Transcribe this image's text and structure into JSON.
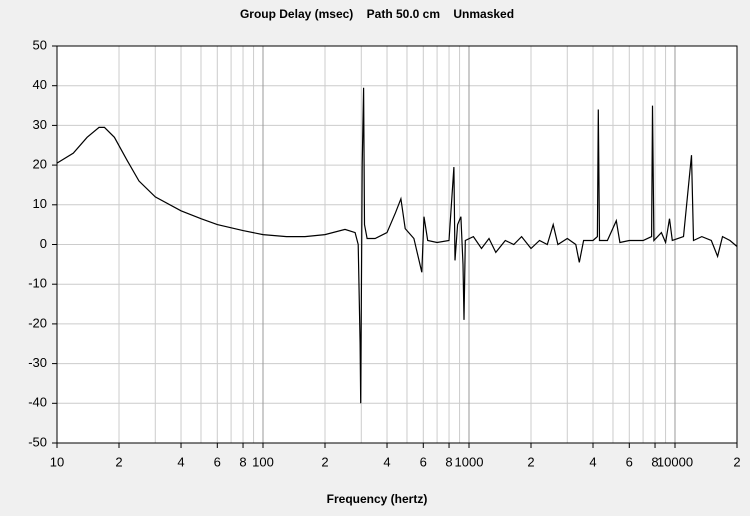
{
  "chart_data": {
    "type": "line",
    "title": "Group Delay (msec)    Path 50.0 cm    Unmasked",
    "xlabel": "Frequency (hertz)",
    "xscale": "log",
    "xlim": [
      10,
      20000
    ],
    "ylim": [
      -50,
      50
    ],
    "yticks": [
      -50,
      -40,
      -30,
      -20,
      -10,
      0,
      10,
      20,
      30,
      40,
      50
    ],
    "xticks": [
      10,
      {
        "value": 20,
        "label": "2"
      },
      {
        "value": 40,
        "label": "4"
      },
      {
        "value": 60,
        "label": "6"
      },
      {
        "value": 80,
        "label": "8"
      },
      100,
      {
        "value": 200,
        "label": "2"
      },
      {
        "value": 400,
        "label": "4"
      },
      {
        "value": 600,
        "label": "6"
      },
      {
        "value": 800,
        "label": "8"
      },
      1000,
      {
        "value": 2000,
        "label": "2"
      },
      {
        "value": 4000,
        "label": "4"
      },
      {
        "value": 6000,
        "label": "6"
      },
      {
        "value": 8000,
        "label": "8"
      },
      10000,
      {
        "value": 20000,
        "label": "2"
      }
    ],
    "x_minor_gridlines": [
      30,
      50,
      70,
      90,
      300,
      500,
      700,
      900,
      3000,
      5000,
      7000,
      9000
    ],
    "grid": true,
    "series": [
      {
        "color": "#000000",
        "x": [
          10,
          12,
          14,
          16,
          17,
          19,
          22,
          25,
          30,
          40,
          50,
          60,
          80,
          100,
          130,
          160,
          200,
          250,
          280,
          290,
          296,
          298,
          303,
          308,
          311,
          320,
          350,
          400,
          440,
          467,
          490,
          540,
          590,
          605,
          630,
          700,
          800,
          845,
          855,
          880,
          914,
          935,
          946,
          960,
          1050,
          1150,
          1250,
          1350,
          1500,
          1650,
          1800,
          2000,
          2200,
          2400,
          2564,
          2700,
          3000,
          3300,
          3430,
          3600,
          4000,
          4200,
          4244,
          4300,
          4700,
          5192,
          5400,
          6000,
          7000,
          7700,
          7780,
          7900,
          8590,
          9000,
          9400,
          9700,
          11000,
          12030,
          12300,
          13500,
          15000,
          16100,
          17000,
          18500,
          20000
        ],
        "values": [
          20.5,
          23,
          27,
          29.5,
          29.5,
          27,
          21,
          16,
          12,
          8.5,
          6.5,
          5,
          3.5,
          2.5,
          2,
          2,
          2.5,
          3.8,
          3,
          0,
          -25,
          -40,
          20,
          39.5,
          5,
          1.5,
          1.5,
          3,
          8,
          11.5,
          4,
          1.5,
          -7,
          7,
          1,
          0.5,
          1,
          19.5,
          -4,
          5,
          7,
          -5,
          -19,
          1,
          2,
          -1,
          1.5,
          -2,
          1,
          0,
          2,
          -1,
          1,
          0,
          5,
          0,
          1.5,
          0,
          -4.5,
          1,
          1,
          2,
          34,
          1,
          1,
          6,
          0.5,
          1,
          1,
          2,
          35,
          1,
          3,
          0.5,
          6.5,
          1,
          2,
          22.5,
          1,
          2,
          1,
          -3,
          2,
          1,
          -0.5
        ]
      }
    ]
  }
}
